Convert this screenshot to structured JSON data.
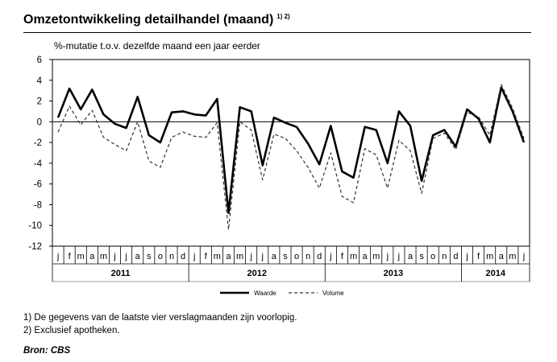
{
  "header": {
    "title": "Omzetontwikkeling detailhandel (maand)",
    "title_sup": "1) 2)"
  },
  "chart_data": {
    "type": "line",
    "title": "Omzetontwikkeling detailhandel (maand)",
    "ylabel": "%-mutatie t.o.v. dezelfde maand een jaar eerder",
    "ylim": [
      -12,
      6
    ],
    "yticks": [
      6,
      4,
      2,
      0,
      -2,
      -4,
      -6,
      -8,
      -10,
      -12
    ],
    "grid": false,
    "legend_position": "bottom-center",
    "month_labels": [
      "j",
      "f",
      "m",
      "a",
      "m",
      "j",
      "j",
      "a",
      "s",
      "o",
      "n",
      "d",
      "j",
      "f",
      "m",
      "a",
      "m",
      "j",
      "j",
      "a",
      "s",
      "o",
      "n",
      "d",
      "j",
      "f",
      "m",
      "a",
      "m",
      "j",
      "j",
      "a",
      "s",
      "o",
      "n",
      "d",
      "j",
      "f",
      "m",
      "a",
      "m",
      "j"
    ],
    "years": [
      {
        "label": "2011",
        "start": 0,
        "count": 12
      },
      {
        "label": "2012",
        "start": 12,
        "count": 12
      },
      {
        "label": "2013",
        "start": 24,
        "count": 12
      },
      {
        "label": "2014",
        "start": 36,
        "count": 6
      }
    ],
    "series": [
      {
        "name": "Waarde",
        "style": "solid",
        "color": "#000000",
        "values": [
          0.4,
          3.2,
          1.2,
          3.1,
          0.7,
          -0.2,
          -0.6,
          2.4,
          -1.3,
          -2.0,
          0.9,
          1.0,
          0.7,
          0.6,
          2.2,
          -8.8,
          1.4,
          1.0,
          -4.2,
          0.4,
          -0.1,
          -0.5,
          -2.1,
          -4.1,
          -0.4,
          -4.8,
          -5.4,
          -0.5,
          -0.8,
          -4.0,
          1.0,
          -0.4,
          -5.7,
          -1.3,
          -0.8,
          -2.4,
          1.2,
          0.3,
          -2.0,
          3.3,
          1.0,
          -2.0
        ]
      },
      {
        "name": "Volume",
        "style": "dashed",
        "color": "#333333",
        "values": [
          -1.0,
          1.5,
          -0.3,
          1.1,
          -1.5,
          -2.2,
          -2.8,
          0.0,
          -3.8,
          -4.4,
          -1.5,
          -1.0,
          -1.4,
          -1.5,
          -0.1,
          -10.4,
          0.0,
          -0.8,
          -5.6,
          -1.2,
          -1.6,
          -2.8,
          -4.4,
          -6.4,
          -3.0,
          -7.2,
          -7.8,
          -2.6,
          -3.2,
          -6.4,
          -1.8,
          -2.8,
          -6.9,
          -1.6,
          -1.1,
          -2.7,
          0.9,
          0.5,
          -1.3,
          3.6,
          1.3,
          -1.6
        ]
      }
    ]
  },
  "footnotes": [
    "1) De gegevens van de laatste vier verslagmaanden zijn voorlopig.",
    "2) Exclusief apotheken."
  ],
  "source": "Bron: CBS"
}
